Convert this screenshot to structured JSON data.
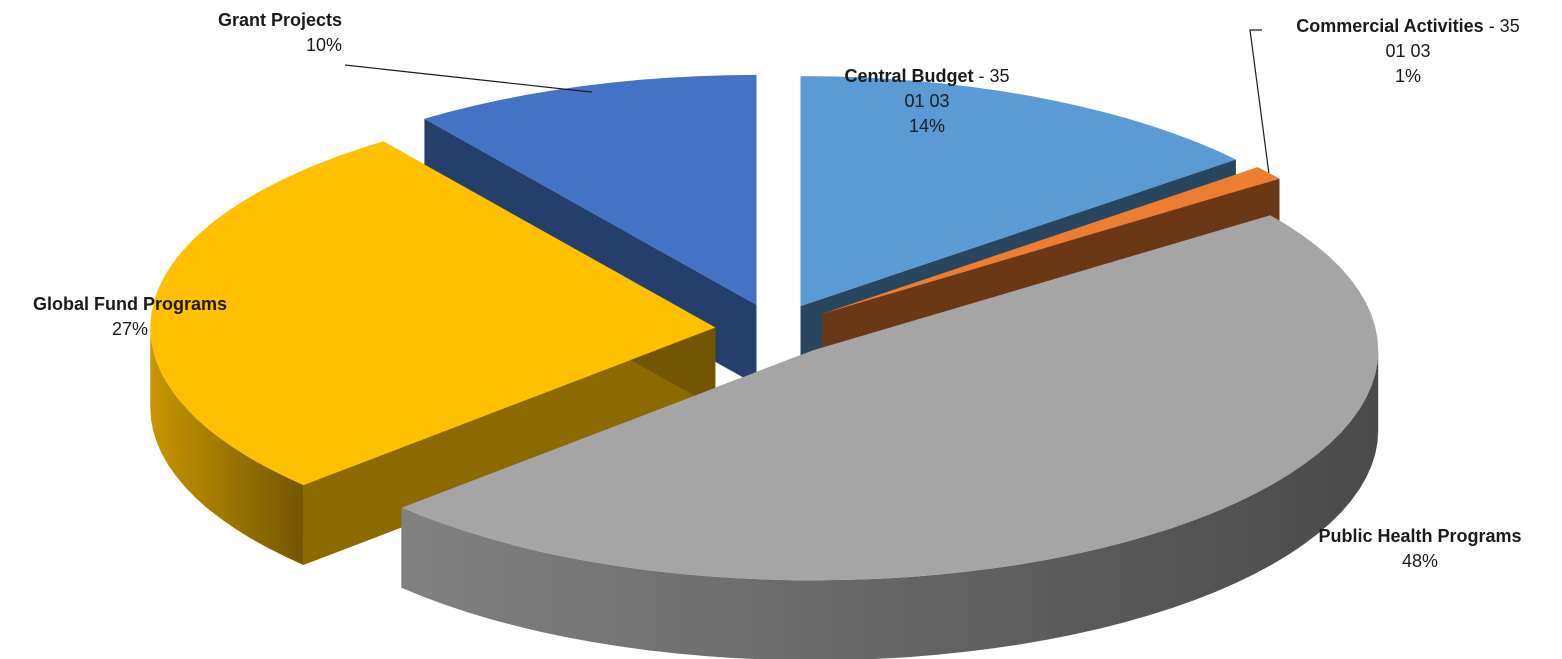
{
  "chart_data": {
    "type": "pie",
    "variant": "3d-exploded",
    "slices": [
      {
        "name": "Central Budget",
        "suffix": " - 35",
        "line2": "01 03",
        "value": 14,
        "pct_label": "14%",
        "color": "#5b9bd5"
      },
      {
        "name": "Commercial Activities",
        "suffix": " - 35",
        "line2": "01 03",
        "value": 1,
        "pct_label": "1%",
        "color": "#ed7d31"
      },
      {
        "name": "Public Health Programs",
        "suffix": "",
        "line2": "",
        "value": 48,
        "pct_label": "48%",
        "color": "#a5a5a5"
      },
      {
        "name": "Global Fund Programs",
        "suffix": "",
        "line2": "",
        "value": 27,
        "pct_label": "27%",
        "color": "#ffc000"
      },
      {
        "name": "Grant Projects",
        "suffix": "",
        "line2": "",
        "value": 10,
        "pct_label": "10%",
        "color": "#4472c4"
      }
    ],
    "legend": "none",
    "data_labels": "category name and percentage"
  }
}
